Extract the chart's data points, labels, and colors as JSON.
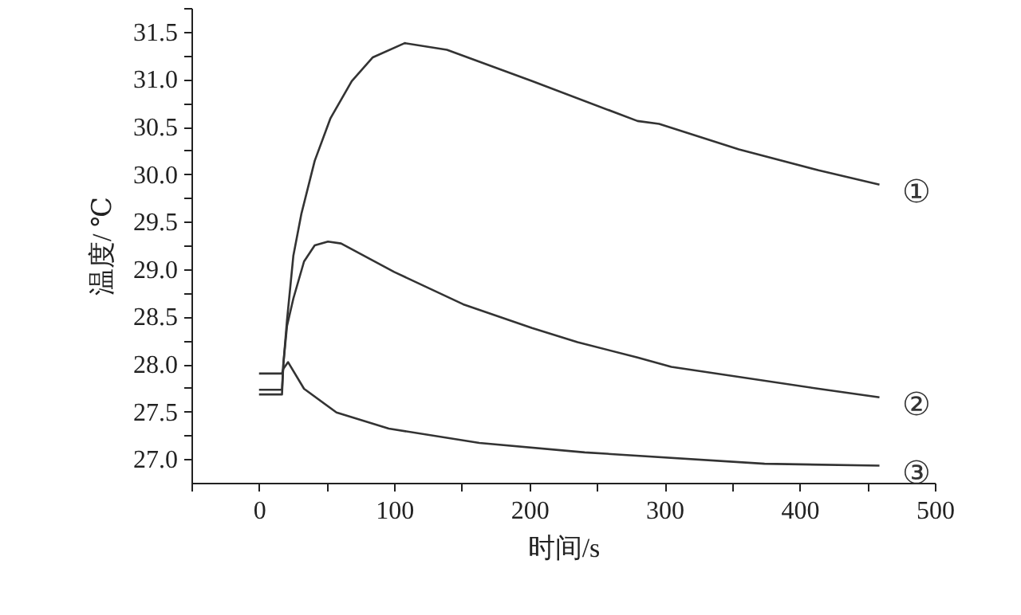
{
  "chart_data": {
    "type": "line",
    "xlabel": "时间/s",
    "ylabel": "温度/ ℃",
    "xlim": [
      -50,
      500
    ],
    "ylim": [
      26.75,
      31.75
    ],
    "xticks": [
      0,
      100,
      200,
      300,
      400,
      500,
      {
        "value": -50,
        "label": null
      },
      {
        "value": 50,
        "label": null
      },
      {
        "value": 150,
        "label": null
      },
      {
        "value": 250,
        "label": null
      },
      {
        "value": 350,
        "label": null
      },
      {
        "value": 450,
        "label": null
      }
    ],
    "yticks": [
      {
        "value": 27,
        "label": "27.0"
      },
      {
        "value": 27.5,
        "label": "27.5"
      },
      {
        "value": 28,
        "label": "28.0"
      },
      {
        "value": 28.5,
        "label": "28.5"
      },
      {
        "value": 29,
        "label": "29.0"
      },
      {
        "value": 29.5,
        "label": "29.5"
      },
      {
        "value": 30,
        "label": "30.0"
      },
      {
        "value": 30.5,
        "label": "30.5"
      },
      {
        "value": 31,
        "label": "31.0"
      },
      {
        "value": 31.5,
        "label": "31.5"
      },
      {
        "value": 27.25,
        "label": null
      },
      {
        "value": 27.75,
        "label": null
      },
      {
        "value": 28.25,
        "label": null
      },
      {
        "value": 28.75,
        "label": null
      },
      {
        "value": 29.25,
        "label": null
      },
      {
        "value": 29.75,
        "label": null
      },
      {
        "value": 30.25,
        "label": null
      },
      {
        "value": 30.75,
        "label": null
      },
      {
        "value": 31.25,
        "label": null
      },
      {
        "value": 31.75,
        "label": null
      }
    ],
    "grid": false,
    "marker": "none",
    "line_style": "solid",
    "series": [
      {
        "name": "①",
        "color": "#333333",
        "x": [
          0,
          17,
          18,
          20.7,
          25.4,
          31.3,
          41.2,
          52.9,
          68.6,
          84.2,
          107.8,
          139,
          202,
          280,
          296,
          355,
          414,
          459
        ],
        "values": [
          27.68,
          27.68,
          28.0,
          28.46,
          29.14,
          29.58,
          30.14,
          30.59,
          30.98,
          31.23,
          31.38,
          31.31,
          30.98,
          30.56,
          30.53,
          30.26,
          30.04,
          29.89
        ]
      },
      {
        "name": "②",
        "color": "#333333",
        "x": [
          0,
          17,
          18,
          20.7,
          25.4,
          33.3,
          41.2,
          51,
          60.7,
          100,
          151,
          202,
          235.6,
          280,
          305,
          414,
          459
        ],
        "values": [
          27.73,
          27.73,
          28.0,
          28.4,
          28.69,
          29.08,
          29.25,
          29.29,
          29.27,
          28.97,
          28.63,
          28.38,
          28.23,
          28.07,
          27.97,
          27.74,
          27.65
        ]
      },
      {
        "name": "③",
        "color": "#333333",
        "x": [
          0,
          17,
          18,
          21.5,
          33.3,
          57.3,
          96,
          163,
          241,
          374,
          459
        ],
        "values": [
          27.9,
          27.9,
          27.95,
          28.02,
          27.74,
          27.49,
          27.32,
          27.17,
          27.07,
          26.95,
          26.93
        ]
      }
    ]
  }
}
